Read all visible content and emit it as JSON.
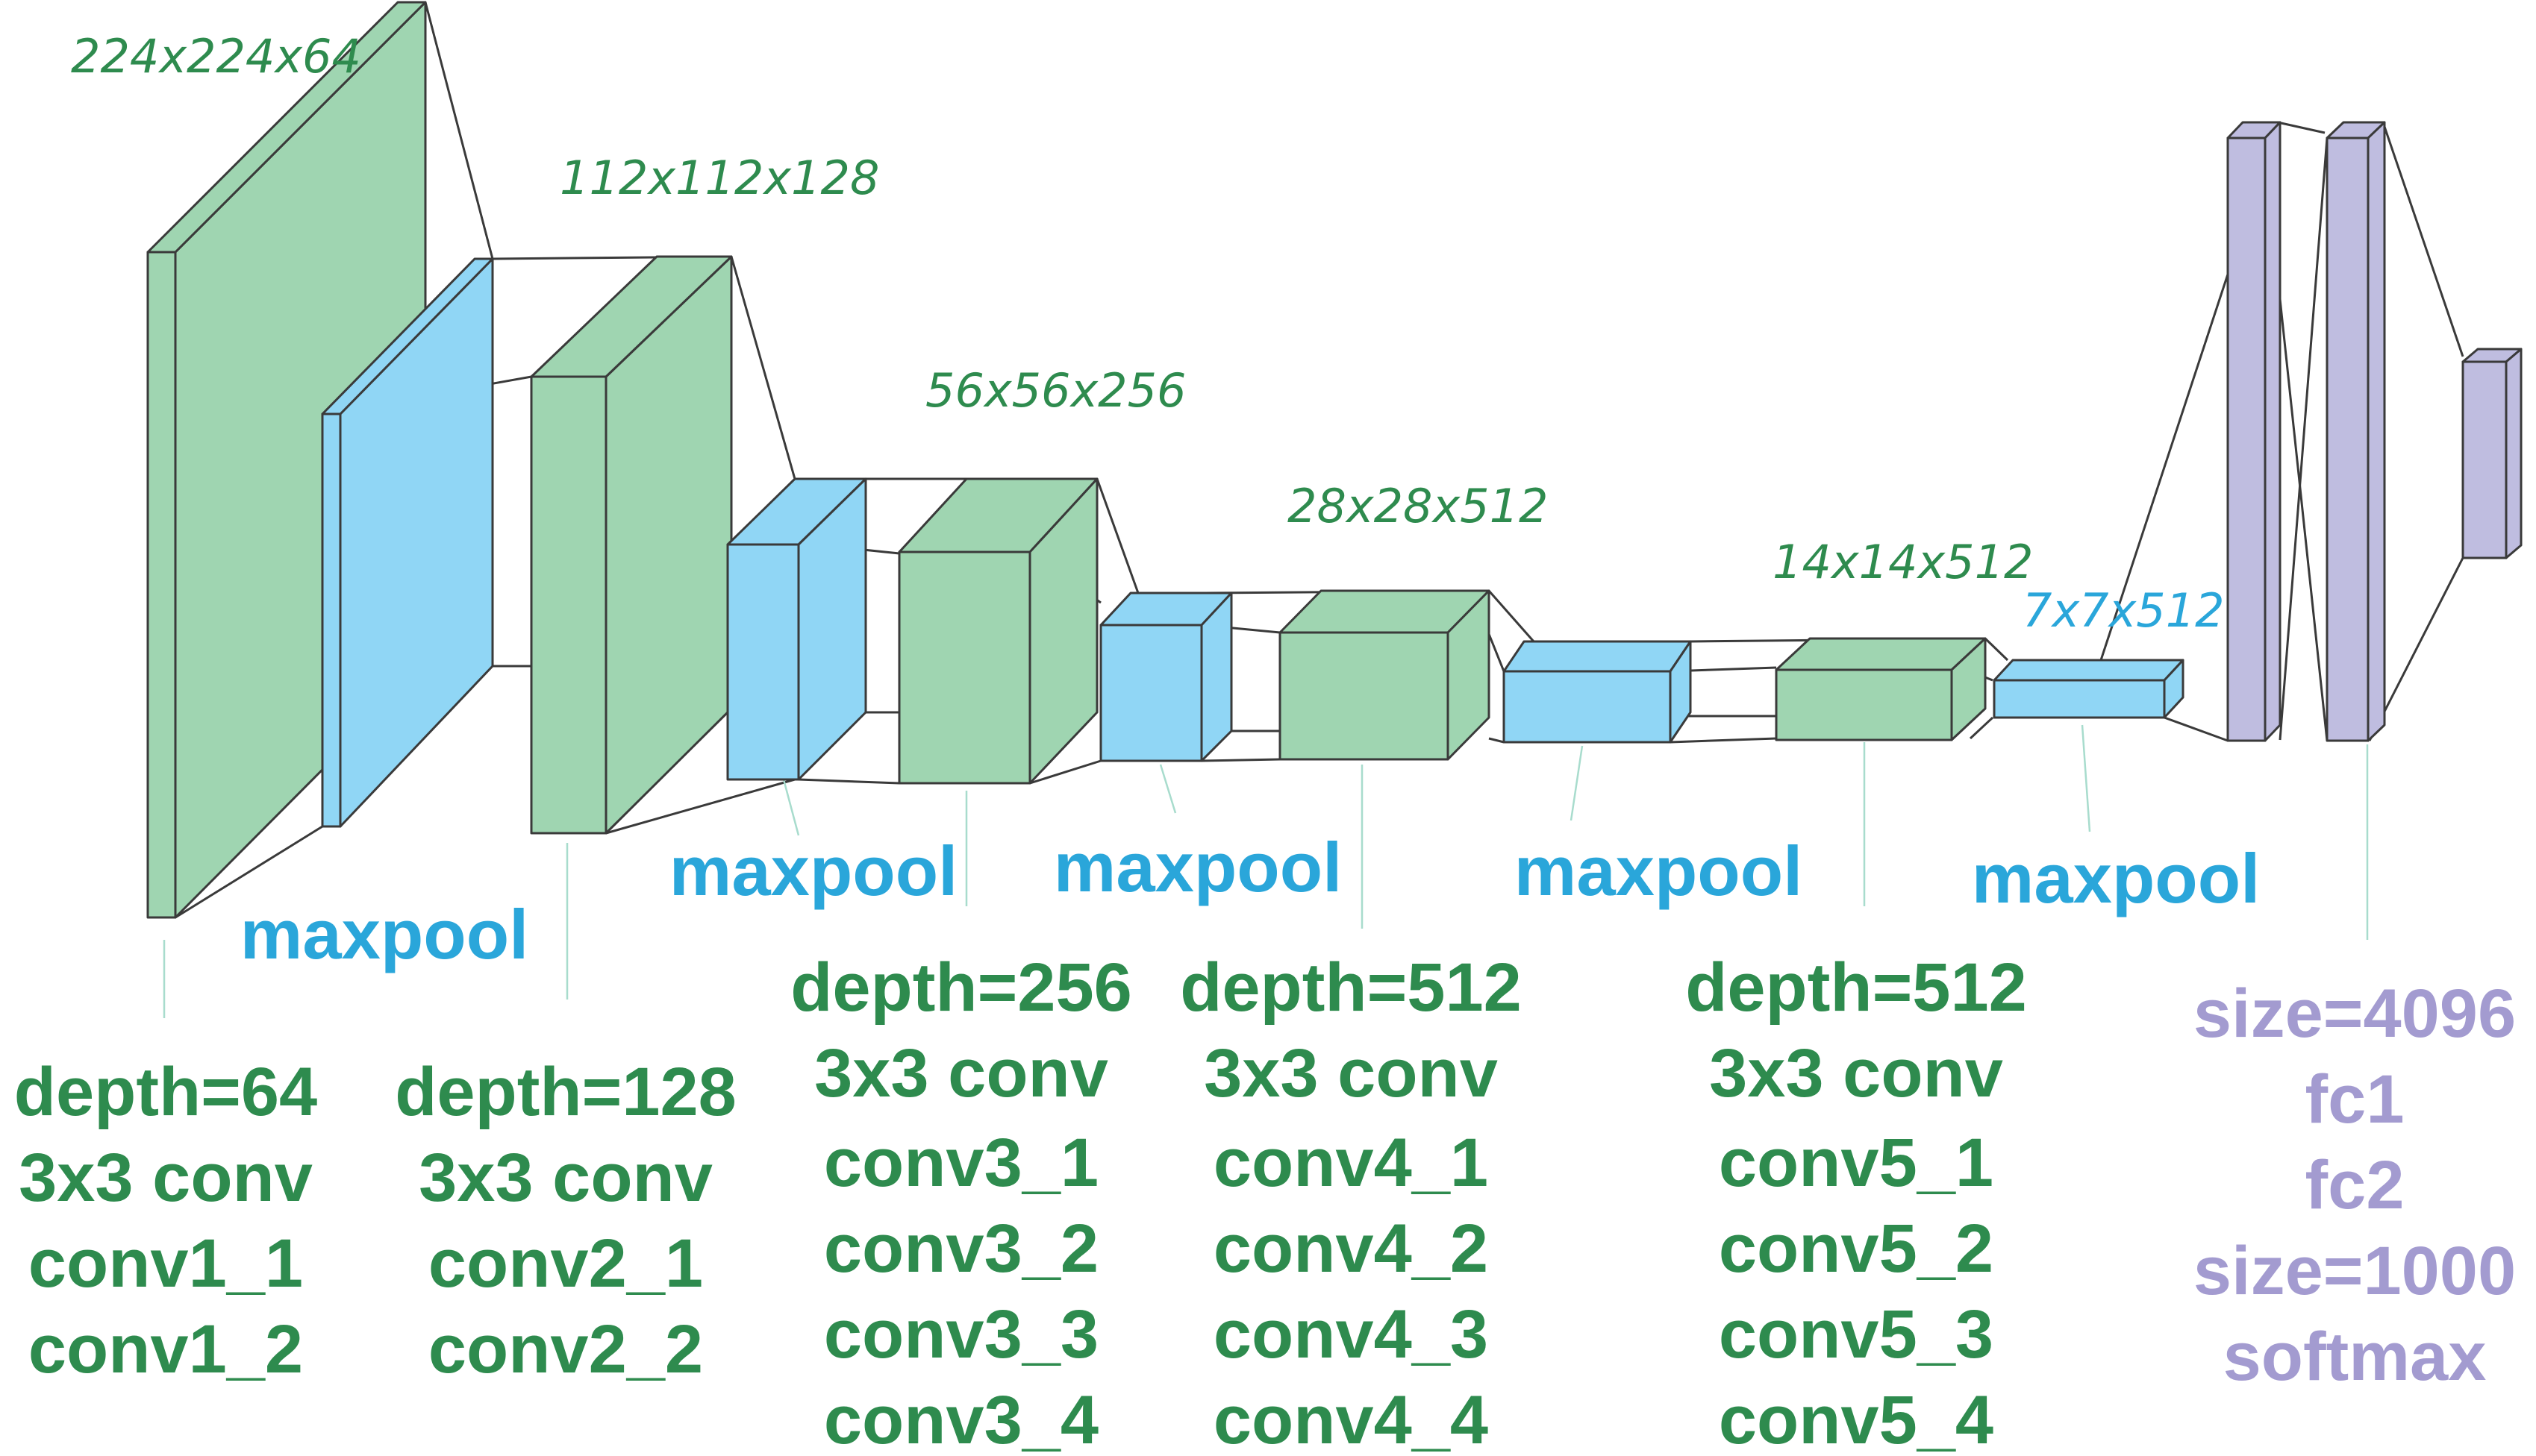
{
  "colors": {
    "conv": "#9fd5b1",
    "conv_text": "#2e8b4e",
    "dim_text": "#2e8b4e",
    "pool": "#90d6f5",
    "pool_text": "#2aa6da",
    "fc": "#bfbde0",
    "fc_text": "#a39bd0",
    "edge": "#3a3a3a"
  },
  "dims": {
    "d1": "224x224x64",
    "d2": "112x112x128",
    "d3": "56x56x256",
    "d4": "28x28x512",
    "d5": "14x14x512",
    "d6": "7x7x512"
  },
  "maxpool": {
    "p1": "maxpool",
    "p2": "maxpool",
    "p3": "maxpool",
    "p4": "maxpool",
    "p5": "maxpool"
  },
  "blocks": {
    "b1": [
      "depth=64",
      "3x3 conv",
      "conv1_1",
      "conv1_2"
    ],
    "b2": [
      "depth=128",
      "3x3 conv",
      "conv2_1",
      "conv2_2"
    ],
    "b3": [
      "depth=256",
      "3x3 conv",
      "conv3_1",
      "conv3_2",
      "conv3_3",
      "conv3_4"
    ],
    "b4": [
      "depth=512",
      "3x3 conv",
      "conv4_1",
      "conv4_2",
      "conv4_3",
      "conv4_4"
    ],
    "b5": [
      "depth=512",
      "3x3 conv",
      "conv5_1",
      "conv5_2",
      "conv5_3",
      "conv5_4"
    ]
  },
  "fc": [
    "size=4096",
    "fc1",
    "fc2",
    "size=1000",
    "softmax"
  ]
}
